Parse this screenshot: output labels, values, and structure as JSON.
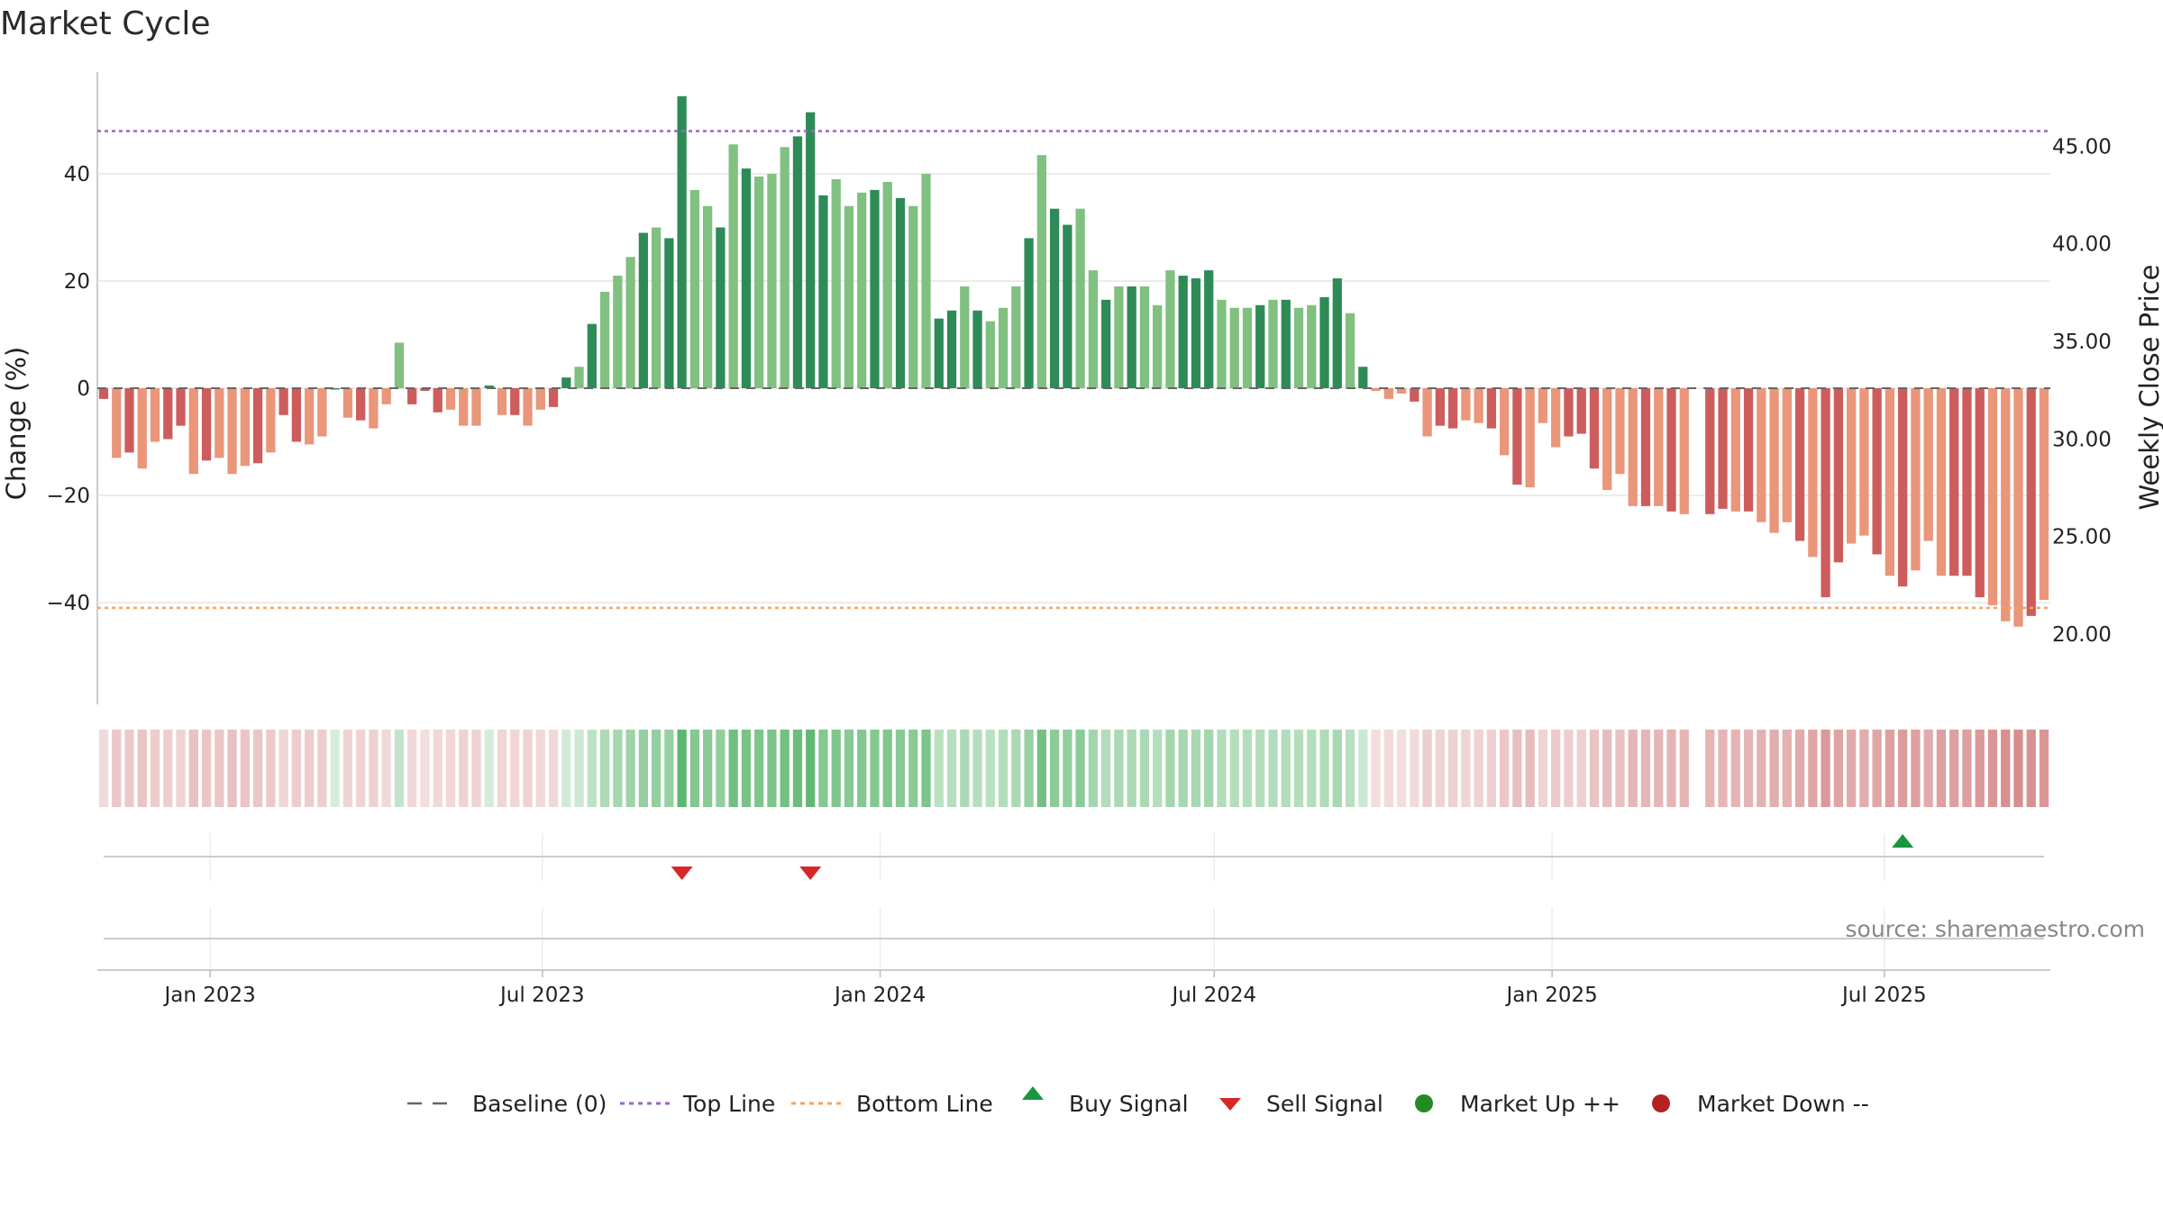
{
  "title": "Market Cycle",
  "source": "source: sharemaestro.com",
  "colors": {
    "up_strong": "#2e8b57",
    "up_light": "#80c080",
    "down_strong": "#cd5c5c",
    "down_light": "#e9967a",
    "top_line": "#9966cc",
    "bottom_line": "#f4a460",
    "baseline": "#666666",
    "buy": "#1a9641",
    "sell": "#d62728",
    "market_up": "#228b22",
    "market_down": "#b22222"
  },
  "chart_data": {
    "type": "bar",
    "ylabel": "Change (%)",
    "y2label": "Weekly Close Price",
    "y_ticks": [
      40,
      20,
      0,
      -20,
      -40
    ],
    "y_tick_labels": [
      "40",
      "20",
      "0",
      "−20",
      "−40"
    ],
    "y2_ticks": [
      45,
      40,
      35,
      30,
      25,
      20
    ],
    "y2_tick_labels": [
      "45.00",
      "40.00",
      "35.00",
      "30.00",
      "25.00",
      "20.00"
    ],
    "ylim": [
      -59,
      59
    ],
    "y2lim": [
      16.4,
      48.8
    ],
    "x_start": "2022-11-04",
    "x_end": "2025-09-26",
    "x_ticks": [
      "2023-01-01",
      "2023-07-01",
      "2024-01-01",
      "2024-07-01",
      "2025-01-01",
      "2025-07-01"
    ],
    "x_tick_labels": [
      "Jan 2023",
      "Jul 2023",
      "Jan 2024",
      "Jul 2024",
      "Jan 2025",
      "Jul 2025"
    ],
    "top_line": 48,
    "bottom_line": -41,
    "weeks": [
      {
        "date": "2022-11-04",
        "v": -2
      },
      {
        "date": "2022-11-11",
        "v": -13
      },
      {
        "date": "2022-11-18",
        "v": -12
      },
      {
        "date": "2022-11-25",
        "v": -15
      },
      {
        "date": "2022-12-02",
        "v": -10
      },
      {
        "date": "2022-12-09",
        "v": -9.5
      },
      {
        "date": "2022-12-16",
        "v": -7
      },
      {
        "date": "2022-12-23",
        "v": -16
      },
      {
        "date": "2022-12-30",
        "v": -13.5
      },
      {
        "date": "2023-01-06",
        "v": -13
      },
      {
        "date": "2023-01-13",
        "v": -16
      },
      {
        "date": "2023-01-20",
        "v": -14.5
      },
      {
        "date": "2023-01-27",
        "v": -14
      },
      {
        "date": "2023-02-03",
        "v": -12
      },
      {
        "date": "2023-02-10",
        "v": -5
      },
      {
        "date": "2023-02-17",
        "v": -10
      },
      {
        "date": "2023-02-24",
        "v": -10.5
      },
      {
        "date": "2023-03-03",
        "v": -9
      },
      {
        "date": "2023-03-10",
        "v": 0
      },
      {
        "date": "2023-03-17",
        "v": -5.5
      },
      {
        "date": "2023-03-24",
        "v": -6
      },
      {
        "date": "2023-03-31",
        "v": -7.5
      },
      {
        "date": "2023-04-07",
        "v": -3
      },
      {
        "date": "2023-04-14",
        "v": 8.5
      },
      {
        "date": "2023-04-21",
        "v": -3
      },
      {
        "date": "2023-04-28",
        "v": -0.5
      },
      {
        "date": "2023-05-05",
        "v": -4.5
      },
      {
        "date": "2023-05-12",
        "v": -4
      },
      {
        "date": "2023-05-19",
        "v": -7
      },
      {
        "date": "2023-05-26",
        "v": -7
      },
      {
        "date": "2023-06-02",
        "v": 0.5
      },
      {
        "date": "2023-06-09",
        "v": -5
      },
      {
        "date": "2023-06-16",
        "v": -5
      },
      {
        "date": "2023-06-23",
        "v": -7
      },
      {
        "date": "2023-06-30",
        "v": -4
      },
      {
        "date": "2023-07-07",
        "v": -3.5
      },
      {
        "date": "2023-07-14",
        "v": 2
      },
      {
        "date": "2023-07-21",
        "v": 4
      },
      {
        "date": "2023-07-28",
        "v": 12
      },
      {
        "date": "2023-08-04",
        "v": 18
      },
      {
        "date": "2023-08-11",
        "v": 21
      },
      {
        "date": "2023-08-18",
        "v": 24.5
      },
      {
        "date": "2023-08-25",
        "v": 29
      },
      {
        "date": "2023-09-01",
        "v": 30
      },
      {
        "date": "2023-09-08",
        "v": 28
      },
      {
        "date": "2023-09-15",
        "v": 54.5
      },
      {
        "date": "2023-09-22",
        "v": 37
      },
      {
        "date": "2023-09-29",
        "v": 34
      },
      {
        "date": "2023-10-06",
        "v": 30
      },
      {
        "date": "2023-10-13",
        "v": 45.5
      },
      {
        "date": "2023-10-20",
        "v": 41
      },
      {
        "date": "2023-10-27",
        "v": 39.5
      },
      {
        "date": "2023-11-03",
        "v": 40
      },
      {
        "date": "2023-11-10",
        "v": 45
      },
      {
        "date": "2023-11-17",
        "v": 47
      },
      {
        "date": "2023-11-24",
        "v": 51.5
      },
      {
        "date": "2023-12-01",
        "v": 36
      },
      {
        "date": "2023-12-08",
        "v": 39
      },
      {
        "date": "2023-12-15",
        "v": 34
      },
      {
        "date": "2023-12-22",
        "v": 36.5
      },
      {
        "date": "2023-12-29",
        "v": 37
      },
      {
        "date": "2024-01-05",
        "v": 38.5
      },
      {
        "date": "2024-01-12",
        "v": 35.5
      },
      {
        "date": "2024-01-19",
        "v": 34
      },
      {
        "date": "2024-01-26",
        "v": 40
      },
      {
        "date": "2024-02-02",
        "v": 13
      },
      {
        "date": "2024-02-09",
        "v": 14.5
      },
      {
        "date": "2024-02-16",
        "v": 19
      },
      {
        "date": "2024-02-23",
        "v": 14.5
      },
      {
        "date": "2024-03-01",
        "v": 12.5
      },
      {
        "date": "2024-03-08",
        "v": 15
      },
      {
        "date": "2024-03-15",
        "v": 19
      },
      {
        "date": "2024-03-22",
        "v": 28
      },
      {
        "date": "2024-03-29",
        "v": 43.5
      },
      {
        "date": "2024-04-05",
        "v": 33.5
      },
      {
        "date": "2024-04-12",
        "v": 30.5
      },
      {
        "date": "2024-04-19",
        "v": 33.5
      },
      {
        "date": "2024-04-26",
        "v": 22
      },
      {
        "date": "2024-05-03",
        "v": 16.5
      },
      {
        "date": "2024-05-10",
        "v": 19
      },
      {
        "date": "2024-05-17",
        "v": 19
      },
      {
        "date": "2024-05-24",
        "v": 19
      },
      {
        "date": "2024-05-31",
        "v": 15.5
      },
      {
        "date": "2024-06-07",
        "v": 22
      },
      {
        "date": "2024-06-14",
        "v": 21
      },
      {
        "date": "2024-06-21",
        "v": 20.5
      },
      {
        "date": "2024-06-28",
        "v": 22
      },
      {
        "date": "2024-07-05",
        "v": 16.5
      },
      {
        "date": "2024-07-12",
        "v": 15
      },
      {
        "date": "2024-07-19",
        "v": 15
      },
      {
        "date": "2024-07-26",
        "v": 15.5
      },
      {
        "date": "2024-08-02",
        "v": 16.5
      },
      {
        "date": "2024-08-09",
        "v": 16.5
      },
      {
        "date": "2024-08-16",
        "v": 15
      },
      {
        "date": "2024-08-23",
        "v": 15.5
      },
      {
        "date": "2024-08-30",
        "v": 17
      },
      {
        "date": "2024-09-06",
        "v": 20.5
      },
      {
        "date": "2024-09-13",
        "v": 14
      },
      {
        "date": "2024-09-20",
        "v": 4
      },
      {
        "date": "2024-09-27",
        "v": -0.5
      },
      {
        "date": "2024-10-04",
        "v": -2
      },
      {
        "date": "2024-10-11",
        "v": -1
      },
      {
        "date": "2024-10-18",
        "v": -2.5
      },
      {
        "date": "2024-10-25",
        "v": -9
      },
      {
        "date": "2024-11-01",
        "v": -7
      },
      {
        "date": "2024-11-08",
        "v": -7.5
      },
      {
        "date": "2024-11-15",
        "v": -6
      },
      {
        "date": "2024-11-22",
        "v": -6.5
      },
      {
        "date": "2024-11-29",
        "v": -7.5
      },
      {
        "date": "2024-12-06",
        "v": -12.5
      },
      {
        "date": "2024-12-13",
        "v": -18
      },
      {
        "date": "2024-12-20",
        "v": -18.5
      },
      {
        "date": "2024-12-27",
        "v": -6.5
      },
      {
        "date": "2025-01-03",
        "v": -11
      },
      {
        "date": "2025-01-10",
        "v": -9
      },
      {
        "date": "2025-01-17",
        "v": -8.5
      },
      {
        "date": "2025-01-24",
        "v": -15
      },
      {
        "date": "2025-01-31",
        "v": -19
      },
      {
        "date": "2025-02-07",
        "v": -16
      },
      {
        "date": "2025-02-14",
        "v": -22
      },
      {
        "date": "2025-02-21",
        "v": -22
      },
      {
        "date": "2025-02-28",
        "v": -22
      },
      {
        "date": "2025-03-07",
        "v": -23
      },
      {
        "date": "2025-03-14",
        "v": -23.5
      },
      {
        "date": "2025-03-21",
        "v": null
      },
      {
        "date": "2025-03-28",
        "v": -23.5
      },
      {
        "date": "2025-04-04",
        "v": -22.5
      },
      {
        "date": "2025-04-11",
        "v": -23
      },
      {
        "date": "2025-04-18",
        "v": -23
      },
      {
        "date": "2025-04-25",
        "v": -25
      },
      {
        "date": "2025-05-02",
        "v": -27
      },
      {
        "date": "2025-05-09",
        "v": -25
      },
      {
        "date": "2025-05-16",
        "v": -28.5
      },
      {
        "date": "2025-05-23",
        "v": -31.5
      },
      {
        "date": "2025-05-30",
        "v": -39
      },
      {
        "date": "2025-06-06",
        "v": -32.5
      },
      {
        "date": "2025-06-13",
        "v": -29
      },
      {
        "date": "2025-06-20",
        "v": -27.5
      },
      {
        "date": "2025-06-27",
        "v": -31
      },
      {
        "date": "2025-07-04",
        "v": -35
      },
      {
        "date": "2025-07-11",
        "v": -37
      },
      {
        "date": "2025-07-18",
        "v": -34
      },
      {
        "date": "2025-07-25",
        "v": -28.5
      },
      {
        "date": "2025-08-01",
        "v": -35
      },
      {
        "date": "2025-08-08",
        "v": -35
      },
      {
        "date": "2025-08-15",
        "v": -35
      },
      {
        "date": "2025-08-22",
        "v": -39
      },
      {
        "date": "2025-08-29",
        "v": -40.5
      },
      {
        "date": "2025-09-05",
        "v": -43.5
      },
      {
        "date": "2025-09-12",
        "v": -44.5
      },
      {
        "date": "2025-09-19",
        "v": -42.5
      },
      {
        "date": "2025-09-26",
        "v": -39.5
      }
    ],
    "sell_signals": [
      "2023-09-15",
      "2023-11-24"
    ],
    "buy_signals": [
      "2025-07-11"
    ],
    "legend": [
      {
        "label": "Baseline (0)",
        "symbol": "dash"
      },
      {
        "label": "Top Line",
        "symbol": "dot-purple"
      },
      {
        "label": "Bottom Line",
        "symbol": "dot-orange"
      },
      {
        "label": "Buy Signal",
        "symbol": "triangle-up"
      },
      {
        "label": "Sell Signal",
        "symbol": "triangle-down"
      },
      {
        "label": "Market Up ++",
        "symbol": "circle-green"
      },
      {
        "label": "Market Down --",
        "symbol": "circle-red"
      }
    ]
  }
}
